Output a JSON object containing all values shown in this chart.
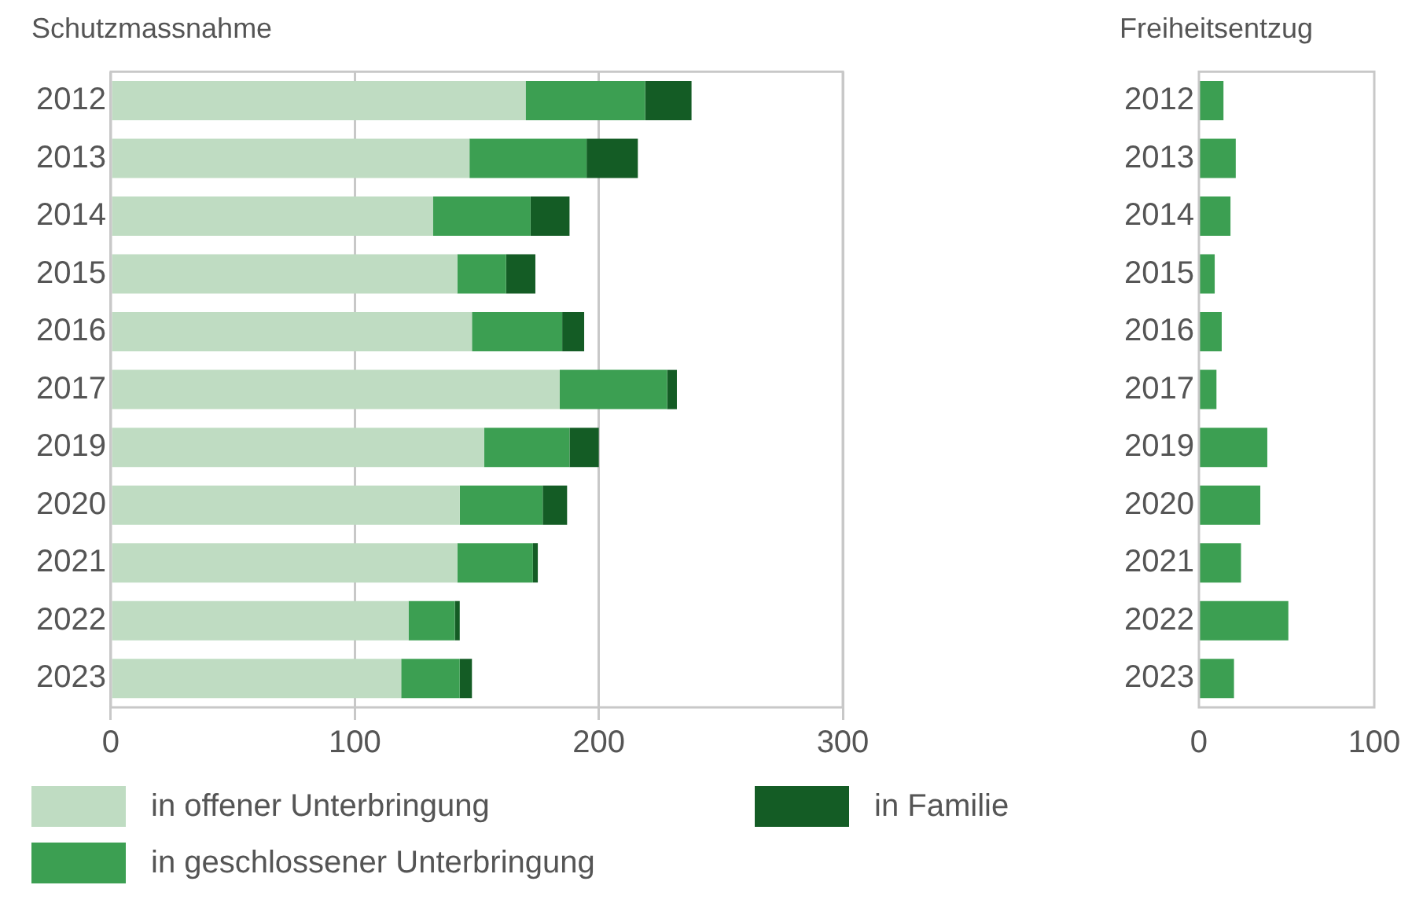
{
  "chart_data": [
    {
      "type": "bar",
      "title": "Schutzmassnahme",
      "orientation": "horizontal",
      "stacked": true,
      "categories": [
        "2012",
        "2013",
        "2014",
        "2015",
        "2016",
        "2017",
        "2019",
        "2020",
        "2021",
        "2022",
        "2023"
      ],
      "series": [
        {
          "name": "in offener Unterbringung",
          "color": "#bfdcc2",
          "values": [
            170,
            147,
            132,
            142,
            148,
            184,
            153,
            143,
            142,
            122,
            119
          ]
        },
        {
          "name": "in geschlossener Unterbringung",
          "color": "#3c9f52",
          "values": [
            49,
            48,
            40,
            20,
            37,
            44,
            35,
            34,
            31,
            19,
            24
          ]
        },
        {
          "name": "in Familie",
          "color": "#145c25",
          "values": [
            19,
            21,
            16,
            12,
            9,
            4,
            12,
            10,
            2,
            2,
            5
          ]
        }
      ],
      "xlim": [
        0,
        300
      ],
      "xticks": [
        0,
        100,
        200,
        300
      ],
      "grid": "x",
      "legend": "bottom"
    },
    {
      "type": "bar",
      "title": "Freiheitsentzug",
      "orientation": "horizontal",
      "categories": [
        "2012",
        "2013",
        "2014",
        "2015",
        "2016",
        "2017",
        "2019",
        "2020",
        "2021",
        "2022",
        "2023"
      ],
      "series": [
        {
          "color": "#3c9f52",
          "values": [
            14,
            21,
            18,
            9,
            13,
            10,
            39,
            35,
            24,
            51,
            20
          ]
        }
      ],
      "xlim": [
        0,
        100
      ],
      "xticks": [
        0,
        100
      ]
    }
  ]
}
